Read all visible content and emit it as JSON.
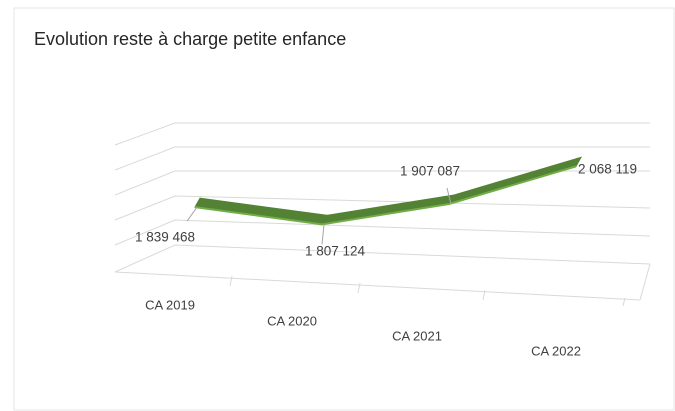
{
  "chart_data": {
    "type": "line3d",
    "title": "Evolution reste à charge petite enfance",
    "categories": [
      "CA 2019",
      "CA 2020",
      "CA 2021",
      "CA 2022"
    ],
    "values": [
      1839468,
      1807124,
      1907087,
      2068119
    ],
    "value_labels": [
      "1 839 468",
      "1 807 124",
      "1 907 087",
      "2 068 119"
    ],
    "color": "#548235",
    "ylim": [
      1600000,
      2200000
    ]
  }
}
